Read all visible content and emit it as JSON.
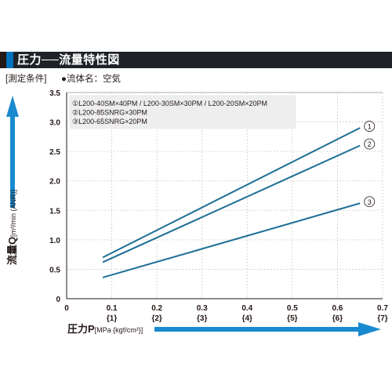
{
  "title": "圧力──流量特性図",
  "condition_label": "[測定条件]",
  "condition_fluid": "●流体名：空気",
  "legend": [
    "①L200-40SM×40PM / L200-30SM×30PM / L200-20SM×20PM",
    "②L200-85SNRG×30PM",
    "③L200-65SNRG×20PM"
  ],
  "y_title": "流量Q",
  "y_unit": "[m³/min (ANR)]",
  "x_title": "圧力P",
  "x_unit": "[MPa {kgf/cm²}]",
  "colors": {
    "line": "#1c6f95",
    "axis_arrow": "#1a8ad0",
    "grid": "#cccccc",
    "title_bar": "#1f2327",
    "title_accent": "#0071bc",
    "legend_bg": "#eeeeee"
  },
  "chart_data": {
    "type": "line",
    "x_ticks": [
      "0",
      "0.1",
      "0.2",
      "0.3",
      "0.4",
      "0.5",
      "0.6",
      "0.7"
    ],
    "x_ticks_sub": [
      "",
      "{1}",
      "{2}",
      "{3}",
      "{4}",
      "{5}",
      "{6}",
      "{7}"
    ],
    "y_ticks": [
      "0",
      "0.5",
      "1.0",
      "1.5",
      "2.0",
      "2.5",
      "3.0",
      "3.5"
    ],
    "xlim": [
      0,
      0.7
    ],
    "ylim": [
      0,
      3.5
    ],
    "grid": true,
    "series": [
      {
        "name": "①",
        "x": [
          0.08,
          0.65
        ],
        "y": [
          0.7,
          2.9
        ]
      },
      {
        "name": "②",
        "x": [
          0.08,
          0.65
        ],
        "y": [
          0.62,
          2.6
        ]
      },
      {
        "name": "③",
        "x": [
          0.08,
          0.65
        ],
        "y": [
          0.36,
          1.62
        ]
      }
    ]
  }
}
